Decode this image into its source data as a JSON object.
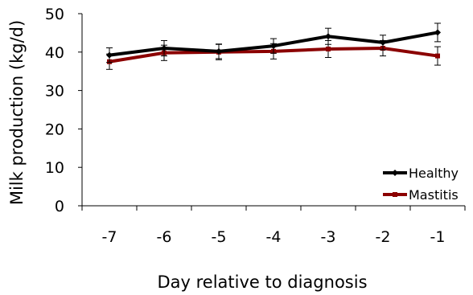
{
  "chart_data": {
    "type": "line",
    "xlabel": "Day relative to diagnosis",
    "ylabel": "Milk production (kg/d)",
    "categories": [
      "-7",
      "-6",
      "-5",
      "-4",
      "-3",
      "-2",
      "-1"
    ],
    "ylim": [
      0,
      50
    ],
    "yticks": [
      "0",
      "10",
      "20",
      "30",
      "40",
      "50"
    ],
    "grid": false,
    "legend_position": "bottom-right",
    "series": [
      {
        "name": "Healthy",
        "color": "#000000",
        "marker": "diamond",
        "values": [
          39.2,
          41.0,
          40.2,
          41.6,
          44.1,
          42.5,
          45.1
        ],
        "errors": [
          1.9,
          2.0,
          1.9,
          1.9,
          2.1,
          1.9,
          2.4
        ]
      },
      {
        "name": "Mastitis",
        "color": "#8B0000",
        "marker": "square",
        "values": [
          37.5,
          39.8,
          40.0,
          40.2,
          40.8,
          41.0,
          39.0
        ],
        "errors": [
          2.0,
          2.0,
          2.0,
          2.0,
          2.2,
          2.0,
          2.4
        ]
      }
    ]
  }
}
